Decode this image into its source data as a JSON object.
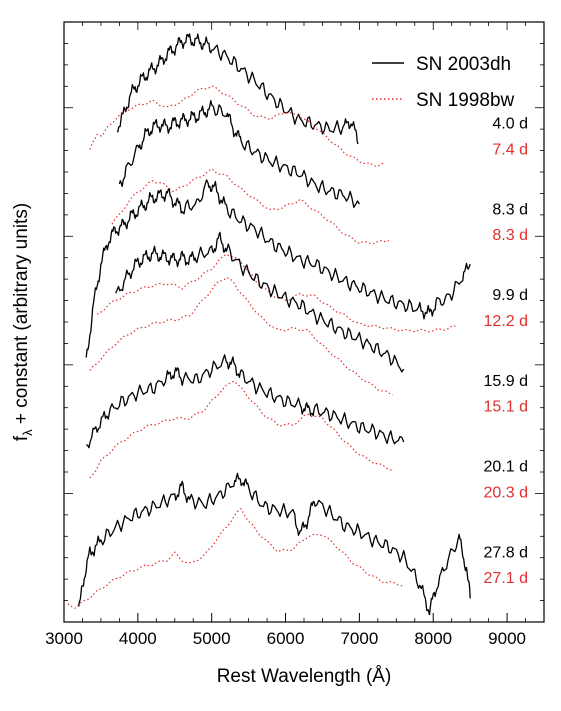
{
  "chart_data": {
    "type": "line",
    "xlabel": "Rest Wavelength (Å)",
    "ylabel_main": "f",
    "ylabel_sub": "λ",
    "ylabel_rest": " + constant (arbitrary units)",
    "xlim": [
      3000,
      9500
    ],
    "ylim": [
      0,
      14
    ],
    "x_ticks": [
      3000,
      4000,
      5000,
      6000,
      7000,
      8000,
      9000
    ],
    "x_tick_labels": [
      "3000",
      "4000",
      "5000",
      "6000",
      "7000",
      "8000",
      "9000"
    ],
    "legend_position": "top-right",
    "legend": [
      {
        "label": "SN 2003dh",
        "color": "#000000",
        "style": "solid"
      },
      {
        "label": "SN 1998bw",
        "color": "#e03030",
        "style": "dotted"
      }
    ],
    "colors": {
      "sn2003dh": "#000000",
      "sn1998bw": "#e03030"
    },
    "series": [
      {
        "name": "SN 2003dh",
        "epoch": "4.0 d",
        "color": "#000000",
        "style": "solid",
        "x": [
          3720,
          3800,
          3900,
          4000,
          4100,
          4200,
          4300,
          4400,
          4500,
          4600,
          4700,
          4800,
          4900,
          5000,
          5200,
          5400,
          5600,
          5800,
          6000,
          6200,
          6400,
          6600,
          6800,
          6900,
          6980
        ],
        "y": [
          11.55,
          11.8,
          12.3,
          12.55,
          12.75,
          12.9,
          13.05,
          13.25,
          13.4,
          13.55,
          13.6,
          13.55,
          13.5,
          13.4,
          13.2,
          12.9,
          12.6,
          12.25,
          11.95,
          11.7,
          11.6,
          11.5,
          11.55,
          11.7,
          11.15
        ],
        "label_color": "#000000"
      },
      {
        "name": "SN 1998bw",
        "epoch": "7.4 d",
        "color": "#e03030",
        "style": "dotted",
        "x": [
          3350,
          3450,
          3520,
          3600,
          3700,
          3850,
          4000,
          4200,
          4400,
          4600,
          4800,
          5000,
          5200,
          5400,
          5600,
          5800,
          6000,
          6200,
          6400,
          6600,
          6800,
          7000,
          7200,
          7350
        ],
        "y": [
          11.0,
          11.4,
          11.35,
          11.55,
          11.75,
          11.95,
          12.05,
          12.15,
          12.0,
          12.15,
          12.4,
          12.5,
          12.3,
          12.05,
          11.8,
          11.75,
          11.9,
          11.8,
          11.55,
          11.25,
          10.95,
          10.75,
          10.65,
          10.7
        ],
        "label_color": "#e03030"
      },
      {
        "name": "SN 2003dh",
        "epoch": "8.3 d",
        "color": "#000000",
        "style": "solid",
        "x": [
          3750,
          3850,
          4000,
          4100,
          4200,
          4300,
          4400,
          4500,
          4600,
          4700,
          4800,
          4900,
          5000,
          5200,
          5300,
          5400,
          5600,
          5800,
          6000,
          6200,
          6400,
          6600,
          6800,
          7000
        ],
        "y": [
          10.2,
          10.55,
          11.05,
          11.35,
          11.55,
          11.6,
          11.55,
          11.65,
          11.7,
          11.75,
          11.8,
          11.9,
          12.0,
          11.85,
          11.5,
          11.2,
          10.95,
          10.75,
          10.6,
          10.45,
          10.2,
          10.05,
          9.95,
          9.75
        ],
        "label_color": "#000000"
      },
      {
        "name": "SN 1998bw",
        "epoch": "8.3 d",
        "color": "#e03030",
        "style": "dotted",
        "x": [
          3650,
          3750,
          3850,
          4000,
          4100,
          4200,
          4300,
          4400,
          4500,
          4600,
          4800,
          5000,
          5200,
          5400,
          5600,
          5800,
          6000,
          6200,
          6400,
          6600,
          6800,
          7000,
          7200,
          7400
        ],
        "y": [
          9.3,
          9.5,
          9.75,
          10.05,
          10.15,
          10.3,
          10.25,
          10.15,
          10.05,
          10.15,
          10.35,
          10.55,
          10.4,
          10.1,
          9.85,
          9.6,
          9.7,
          9.85,
          9.6,
          9.35,
          9.05,
          8.85,
          8.85,
          8.9
        ],
        "label_color": "#e03030"
      },
      {
        "name": "SN 2003dh",
        "epoch": "9.9 d",
        "color": "#000000",
        "style": "solid",
        "x": [
          3300,
          3400,
          3500,
          3600,
          3700,
          3800,
          3900,
          4000,
          4100,
          4200,
          4300,
          4400,
          4500,
          4600,
          4800,
          4950,
          5050,
          5200,
          5400,
          5600,
          5800,
          6000,
          6200,
          6400,
          6600,
          6800,
          7000,
          7200,
          7400,
          7600,
          7800,
          7950,
          8050,
          8200,
          8400,
          8500
        ],
        "y": [
          6.1,
          7.4,
          8.35,
          8.9,
          9.15,
          9.25,
          9.45,
          9.6,
          9.75,
          9.9,
          9.95,
          10.0,
          9.8,
          9.65,
          9.75,
          10.25,
          10.1,
          9.65,
          9.35,
          9.15,
          8.85,
          8.65,
          8.45,
          8.35,
          8.15,
          7.95,
          7.8,
          7.65,
          7.5,
          7.4,
          7.3,
          7.2,
          7.45,
          7.55,
          8.05,
          8.35
        ],
        "label_color": "#000000"
      },
      {
        "name": "SN 1998bw",
        "epoch": "12.2 d",
        "color": "#e03030",
        "style": "dotted",
        "x": [
          3450,
          3600,
          3800,
          4000,
          4200,
          4400,
          4600,
          4800,
          5000,
          5200,
          5400,
          5600,
          5800,
          6000,
          6200,
          6400,
          6600,
          6800,
          7000,
          7200,
          7400,
          7600,
          7800,
          8000,
          8200,
          8300
        ],
        "y": [
          7.15,
          7.4,
          7.6,
          7.75,
          7.85,
          7.9,
          7.8,
          8.0,
          8.25,
          8.6,
          8.4,
          7.95,
          7.65,
          7.5,
          7.65,
          7.6,
          7.35,
          7.15,
          6.95,
          6.9,
          6.85,
          6.8,
          6.8,
          6.8,
          6.85,
          6.9
        ],
        "label_color": "#e03030"
      },
      {
        "name": "SN 2003dh",
        "epoch": "15.9 d",
        "color": "#000000",
        "style": "solid",
        "x": [
          3700,
          3850,
          4000,
          4100,
          4200,
          4300,
          4400,
          4500,
          4600,
          4700,
          4800,
          5000,
          5100,
          5200,
          5400,
          5600,
          5800,
          6000,
          6200,
          6400,
          6600,
          6800,
          7000,
          7200,
          7400,
          7600
        ],
        "y": [
          7.6,
          8.05,
          8.4,
          8.5,
          8.6,
          8.55,
          8.5,
          8.45,
          8.5,
          8.45,
          8.55,
          8.65,
          8.95,
          8.7,
          8.3,
          8.0,
          7.75,
          7.55,
          7.4,
          7.15,
          6.95,
          6.75,
          6.6,
          6.4,
          6.2,
          5.9
        ],
        "label_color": "#000000"
      },
      {
        "name": "SN 1998bw",
        "epoch": "15.1 d",
        "color": "#e03030",
        "style": "dotted",
        "x": [
          3350,
          3500,
          3700,
          3900,
          4100,
          4300,
          4500,
          4700,
          4900,
          5100,
          5200,
          5300,
          5500,
          5700,
          5900,
          6100,
          6300,
          6500,
          6700,
          6900,
          7100,
          7300,
          7450
        ],
        "y": [
          5.85,
          6.15,
          6.5,
          6.75,
          6.9,
          7.0,
          7.05,
          7.15,
          7.55,
          7.95,
          8.05,
          7.9,
          7.45,
          7.05,
          6.8,
          6.85,
          6.8,
          6.45,
          6.15,
          5.85,
          5.6,
          5.4,
          5.3
        ],
        "label_color": "#e03030"
      },
      {
        "name": "SN 2003dh",
        "epoch": "20.1 d",
        "color": "#000000",
        "style": "solid",
        "x": [
          3300,
          3450,
          3600,
          3800,
          4000,
          4200,
          4400,
          4500,
          4600,
          4800,
          5000,
          5200,
          5300,
          5400,
          5600,
          5800,
          6000,
          6200,
          6300,
          6400,
          6600,
          6800,
          7000,
          7200,
          7400,
          7600
        ],
        "y": [
          4.1,
          4.55,
          4.9,
          5.15,
          5.35,
          5.45,
          5.7,
          5.85,
          5.7,
          5.65,
          5.9,
          6.1,
          6.0,
          5.75,
          5.5,
          5.3,
          5.15,
          5.05,
          4.95,
          4.95,
          4.85,
          4.7,
          4.55,
          4.45,
          4.3,
          4.2
        ],
        "label_color": "#000000"
      },
      {
        "name": "SN 1998bw",
        "epoch": "20.3 d",
        "color": "#e03030",
        "style": "dotted",
        "x": [
          3350,
          3500,
          3700,
          3900,
          4100,
          4300,
          4500,
          4700,
          4900,
          5100,
          5300,
          5500,
          5700,
          5900,
          6100,
          6300,
          6500,
          6700,
          6900,
          7100,
          7300,
          7450
        ],
        "y": [
          3.35,
          3.75,
          4.1,
          4.35,
          4.55,
          4.65,
          4.75,
          4.75,
          4.95,
          5.35,
          5.65,
          5.25,
          4.85,
          4.6,
          4.6,
          4.85,
          4.75,
          4.4,
          4.05,
          3.8,
          3.65,
          3.55
        ],
        "label_color": "#e03030"
      },
      {
        "name": "SN 2003dh",
        "epoch": "27.8 d",
        "color": "#000000",
        "style": "solid",
        "x": [
          3200,
          3250,
          3350,
          3500,
          3700,
          3900,
          4100,
          4300,
          4500,
          4600,
          4700,
          4900,
          5100,
          5300,
          5400,
          5500,
          5700,
          5900,
          6100,
          6200,
          6300,
          6400,
          6600,
          6800,
          7000,
          7200,
          7400,
          7600,
          7800,
          7950,
          8050,
          8200,
          8350,
          8450,
          8500
        ],
        "y": [
          0.2,
          0.9,
          1.6,
          1.9,
          2.2,
          2.45,
          2.6,
          2.75,
          2.95,
          3.15,
          2.85,
          2.75,
          2.95,
          3.25,
          3.35,
          3.1,
          2.7,
          2.6,
          2.55,
          2.05,
          2.4,
          2.85,
          2.55,
          2.25,
          2.1,
          1.9,
          1.75,
          1.5,
          0.95,
          0.25,
          0.85,
          1.45,
          1.95,
          1.25,
          0.55
        ],
        "label_color": "#000000"
      },
      {
        "name": "SN 1998bw",
        "epoch": "27.1 d",
        "color": "#e03030",
        "style": "dotted",
        "x": [
          3050,
          3150,
          3250,
          3400,
          3600,
          3800,
          4000,
          4200,
          4400,
          4500,
          4600,
          4700,
          4900,
          5100,
          5300,
          5400,
          5500,
          5700,
          5900,
          6100,
          6300,
          6500,
          6700,
          6900,
          7100,
          7300,
          7500,
          7600
        ],
        "y": [
          0.4,
          0.35,
          0.45,
          0.65,
          0.9,
          1.1,
          1.25,
          1.35,
          1.45,
          1.6,
          1.45,
          1.35,
          1.55,
          2.0,
          2.45,
          2.65,
          2.35,
          1.95,
          1.65,
          1.7,
          2.0,
          2.05,
          1.75,
          1.4,
          1.15,
          0.95,
          0.9,
          0.85
        ],
        "label_color": "#e03030"
      }
    ],
    "epoch_labels": [
      {
        "text": "4.0 d",
        "color": "#000000",
        "y": 11.65
      },
      {
        "text": "7.4 d",
        "color": "#e03030",
        "y": 11.05
      },
      {
        "text": "8.3 d",
        "color": "#000000",
        "y": 9.65
      },
      {
        "text": "8.3 d",
        "color": "#e03030",
        "y": 9.05
      },
      {
        "text": "9.9 d",
        "color": "#000000",
        "y": 7.65
      },
      {
        "text": "12.2 d",
        "color": "#e03030",
        "y": 7.05
      },
      {
        "text": "15.9 d",
        "color": "#000000",
        "y": 5.65
      },
      {
        "text": "15.1 d",
        "color": "#e03030",
        "y": 5.05
      },
      {
        "text": "20.1 d",
        "color": "#000000",
        "y": 3.65
      },
      {
        "text": "20.3 d",
        "color": "#e03030",
        "y": 3.05
      },
      {
        "text": "27.8 d",
        "color": "#000000",
        "y": 1.65
      },
      {
        "text": "27.1 d",
        "color": "#e03030",
        "y": 1.05
      }
    ]
  }
}
